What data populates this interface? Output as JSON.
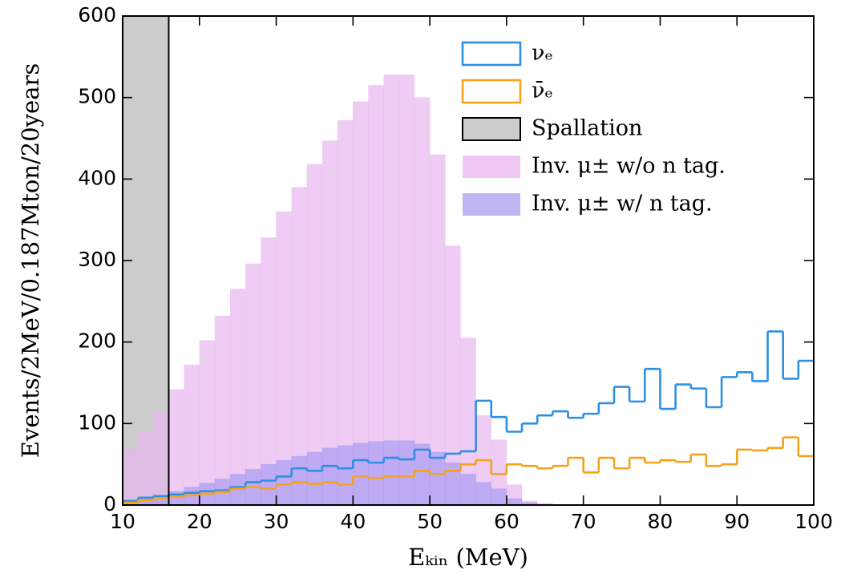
{
  "chart_data": {
    "type": "histogram",
    "xlabel": "Eₖᵢₙ (MeV)",
    "ylabel": "Events/2MeV/0.187Mton/20years",
    "xlim": [
      10,
      100
    ],
    "xticks": [
      10,
      20,
      30,
      40,
      50,
      60,
      70,
      80,
      90,
      100
    ],
    "ylim": [
      0,
      600
    ],
    "yticks": [
      0,
      100,
      200,
      300,
      400,
      500,
      600
    ],
    "legend": "upper-right",
    "bins": [
      10,
      12,
      14,
      16,
      18,
      20,
      22,
      24,
      26,
      28,
      30,
      32,
      34,
      36,
      38,
      40,
      42,
      44,
      46,
      48,
      50,
      52,
      54,
      56,
      58,
      60,
      62,
      64,
      66,
      68,
      70,
      72,
      74,
      76,
      78,
      80,
      82,
      84,
      86,
      88,
      90,
      92,
      94,
      96,
      98,
      100
    ],
    "band": {
      "name": "Spallation",
      "x": [
        10,
        16
      ],
      "color": "#cccccc"
    },
    "series": [
      {
        "name": "νₑ",
        "style": "step",
        "color": "#2e8fe3",
        "values": [
          5,
          9,
          11,
          13,
          15,
          17,
          18,
          22,
          28,
          30,
          35,
          45,
          42,
          48,
          45,
          55,
          52,
          58,
          56,
          68,
          58,
          63,
          66,
          128,
          108,
          90,
          100,
          110,
          115,
          107,
          112,
          125,
          145,
          127,
          167,
          118,
          148,
          143,
          120,
          157,
          163,
          152,
          213,
          155,
          177
        ]
      },
      {
        "name": "ν̄ₑ",
        "style": "step",
        "color": "#f5a21d",
        "values": [
          3,
          6,
          8,
          10,
          12,
          14,
          16,
          20,
          22,
          20,
          25,
          28,
          26,
          28,
          25,
          35,
          33,
          35,
          35,
          42,
          38,
          42,
          50,
          55,
          38,
          50,
          48,
          45,
          48,
          58,
          40,
          58,
          45,
          58,
          52,
          55,
          53,
          62,
          48,
          50,
          68,
          67,
          70,
          83,
          60
        ]
      },
      {
        "name": "Inv. μ± w/o n tag.",
        "style": "filled",
        "color": "#e8b6ee",
        "values": [
          68,
          90,
          115,
          142,
          172,
          202,
          232,
          265,
          296,
          328,
          360,
          390,
          418,
          447,
          472,
          495,
          515,
          528,
          528,
          500,
          430,
          318,
          205,
          110,
          80,
          25,
          5,
          2,
          0,
          0,
          0,
          0,
          0,
          0,
          0,
          0,
          0,
          0,
          0,
          0,
          0,
          0,
          0,
          0,
          0
        ]
      },
      {
        "name": "Inv. μ± w/ n tag.",
        "style": "filled",
        "color": "#a99cf2",
        "values": [
          3,
          8,
          12,
          17,
          22,
          27,
          32,
          38,
          44,
          50,
          55,
          60,
          65,
          70,
          73,
          76,
          78,
          79,
          79,
          75,
          65,
          52,
          38,
          28,
          20,
          8,
          3,
          1,
          0,
          0,
          0,
          0,
          0,
          0,
          0,
          0,
          0,
          0,
          0,
          0,
          0,
          0,
          0,
          0,
          0
        ]
      }
    ]
  }
}
